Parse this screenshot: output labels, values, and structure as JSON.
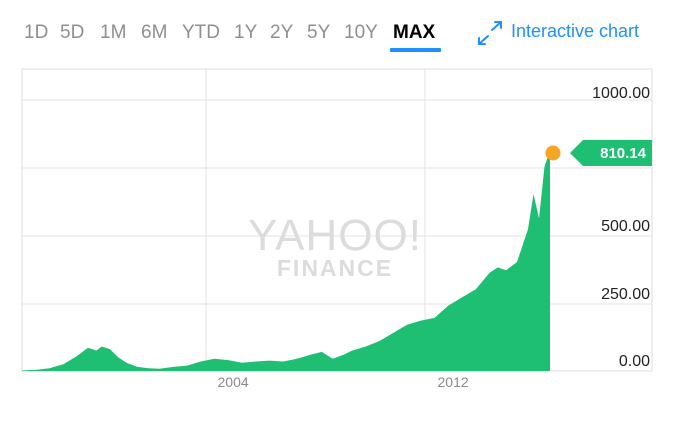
{
  "range_tabs": [
    {
      "label": "1D",
      "active": false
    },
    {
      "label": "5D",
      "active": false
    },
    {
      "label": "1M",
      "active": false
    },
    {
      "label": "6M",
      "active": false
    },
    {
      "label": "YTD",
      "active": false
    },
    {
      "label": "1Y",
      "active": false
    },
    {
      "label": "2Y",
      "active": false
    },
    {
      "label": "5Y",
      "active": false
    },
    {
      "label": "10Y",
      "active": false
    },
    {
      "label": "MAX",
      "active": true
    }
  ],
  "interactive_chart": {
    "label": "Interactive chart",
    "icon": "expand-arrows-icon"
  },
  "watermark": {
    "line1": "YAHOO!",
    "line2": "FINANCE"
  },
  "colors": {
    "area": "#1fbf73",
    "volume": "#1fbf73",
    "accent": "#1e90ff",
    "marker": "#f5a623",
    "grid": "#e3e3e3"
  },
  "chart_data": {
    "type": "area",
    "x_range": [
      1997.0,
      2016.2
    ],
    "ylim": [
      0,
      1000
    ],
    "y_ticks": [
      {
        "value": 1000,
        "label": "1000.00"
      },
      {
        "value": 500,
        "label": "500.00"
      },
      {
        "value": 250,
        "label": "250.00"
      },
      {
        "value": 0,
        "label": "0.00"
      }
    ],
    "x_ticks": [
      {
        "value": 2004,
        "label": "2004"
      },
      {
        "value": 2012,
        "label": "2012"
      }
    ],
    "last_price": {
      "value": 810.14,
      "label": "810.14"
    },
    "series": [
      {
        "x": [
          1997.0,
          1997.5,
          1998.0,
          1998.5,
          1999.0,
          1999.4,
          1999.7,
          1999.9,
          2000.2,
          2000.5,
          2000.8,
          2001.2,
          2001.6,
          2002.0,
          2002.5,
          2003.0,
          2003.5,
          2004.0,
          2004.5,
          2005.0,
          2005.5,
          2006.0,
          2006.5,
          2007.0,
          2007.5,
          2007.9,
          2008.3,
          2008.7,
          2009.0,
          2009.5,
          2010.0,
          2010.5,
          2011.0,
          2011.5,
          2012.0,
          2012.5,
          2013.0,
          2013.5,
          2014.0,
          2014.3,
          2014.6,
          2015.0,
          2015.4,
          2015.6,
          2015.8,
          2016.0,
          2016.2
        ],
        "y": [
          2,
          4,
          10,
          25,
          55,
          85,
          75,
          90,
          80,
          50,
          30,
          15,
          10,
          8,
          15,
          20,
          35,
          45,
          40,
          30,
          35,
          38,
          35,
          45,
          60,
          70,
          45,
          60,
          75,
          90,
          110,
          140,
          170,
          185,
          195,
          240,
          270,
          300,
          360,
          380,
          370,
          400,
          520,
          650,
          560,
          750,
          810
        ]
      }
    ]
  }
}
